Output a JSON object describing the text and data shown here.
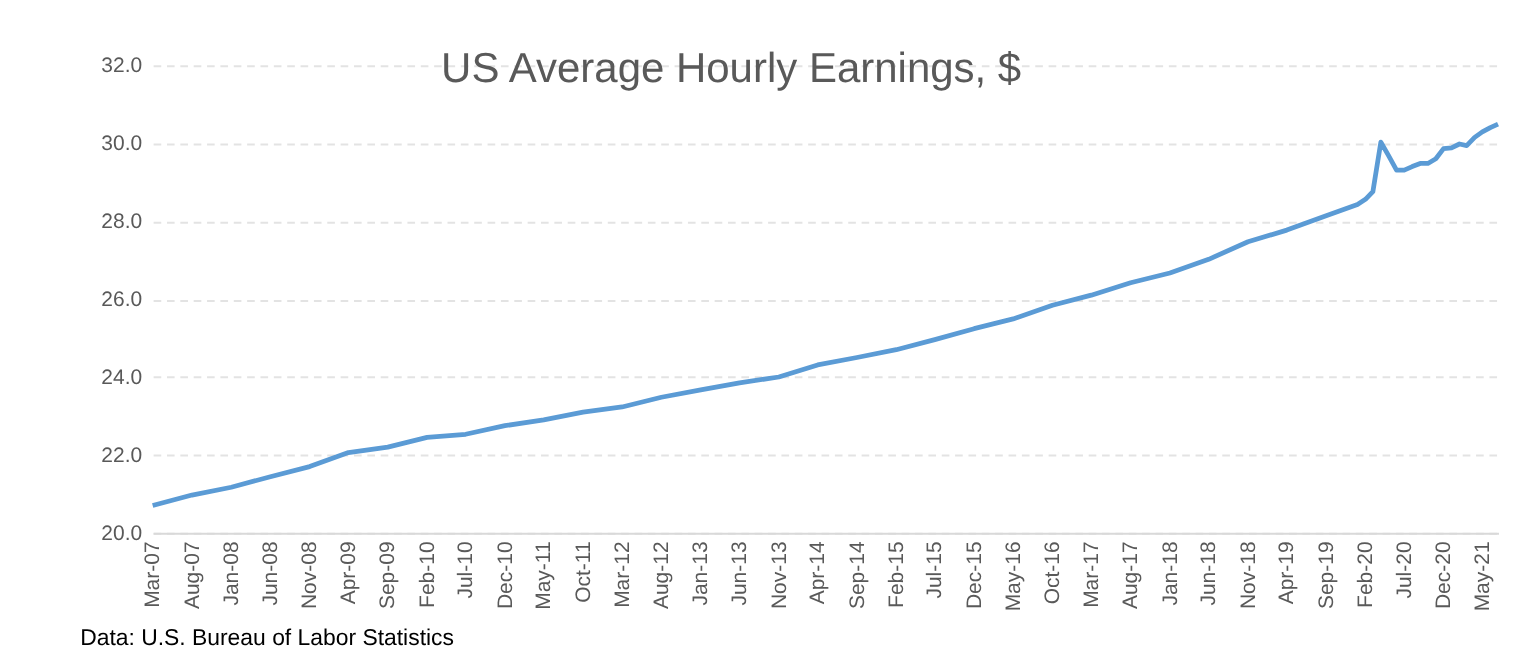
{
  "chart_data": {
    "type": "line",
    "title": "US Average Hourly Earnings, $",
    "annotations": [
      "Data: U.S. Bureau of Labor Statistics"
    ],
    "x": [
      "2007-03",
      "2007-08",
      "2008-01",
      "2008-06",
      "2008-11",
      "2009-04",
      "2009-09",
      "2010-02",
      "2010-07",
      "2010-12",
      "2011-05",
      "2011-10",
      "2012-03",
      "2012-08",
      "2013-01",
      "2013-06",
      "2013-11",
      "2014-04",
      "2014-09",
      "2015-02",
      "2015-07",
      "2015-12",
      "2016-05",
      "2016-10",
      "2017-03",
      "2017-08",
      "2018-01",
      "2018-06",
      "2018-11",
      "2019-04",
      "2019-09",
      "2020-01",
      "2020-02",
      "2020-03",
      "2020-04",
      "2020-05",
      "2020-06",
      "2020-07",
      "2020-08",
      "2020-09",
      "2020-10",
      "2020-11",
      "2020-12",
      "2021-01",
      "2021-02",
      "2021-03",
      "2021-04",
      "2021-05",
      "2021-06",
      "2021-07"
    ],
    "series": [
      {
        "color": "#5b9bd5",
        "values": [
          20.7,
          20.97,
          21.17,
          21.44,
          21.7,
          22.06,
          22.2,
          22.45,
          22.53,
          22.75,
          22.9,
          23.1,
          23.23,
          23.48,
          23.67,
          23.85,
          24.0,
          24.31,
          24.5,
          24.7,
          24.96,
          25.24,
          25.49,
          25.84,
          26.1,
          26.42,
          26.67,
          27.02,
          27.47,
          27.77,
          28.14,
          28.43,
          28.56,
          28.76,
          30.03,
          29.68,
          29.31,
          29.31,
          29.4,
          29.48,
          29.48,
          29.6,
          29.86,
          29.88,
          29.98,
          29.94,
          30.15,
          30.29,
          30.4,
          30.49
        ]
      }
    ],
    "xlim": [
      "2007-03",
      "2021-07"
    ],
    "xticks": [
      {
        "value": "2007-03",
        "label": "Mar-07"
      },
      {
        "value": "2007-08",
        "label": "Aug-07"
      },
      {
        "value": "2008-01",
        "label": "Jan-08"
      },
      {
        "value": "2008-06",
        "label": "Jun-08"
      },
      {
        "value": "2008-11",
        "label": "Nov-08"
      },
      {
        "value": "2009-04",
        "label": "Apr-09"
      },
      {
        "value": "2009-09",
        "label": "Sep-09"
      },
      {
        "value": "2010-02",
        "label": "Feb-10"
      },
      {
        "value": "2010-07",
        "label": "Jul-10"
      },
      {
        "value": "2010-12",
        "label": "Dec-10"
      },
      {
        "value": "2011-05",
        "label": "May-11"
      },
      {
        "value": "2011-10",
        "label": "Oct-11"
      },
      {
        "value": "2012-03",
        "label": "Mar-12"
      },
      {
        "value": "2012-08",
        "label": "Aug-12"
      },
      {
        "value": "2013-01",
        "label": "Jan-13"
      },
      {
        "value": "2013-06",
        "label": "Jun-13"
      },
      {
        "value": "2013-11",
        "label": "Nov-13"
      },
      {
        "value": "2014-04",
        "label": "Apr-14"
      },
      {
        "value": "2014-09",
        "label": "Sep-14"
      },
      {
        "value": "2015-02",
        "label": "Feb-15"
      },
      {
        "value": "2015-07",
        "label": "Jul-15"
      },
      {
        "value": "2015-12",
        "label": "Dec-15"
      },
      {
        "value": "2016-05",
        "label": "May-16"
      },
      {
        "value": "2016-10",
        "label": "Oct-16"
      },
      {
        "value": "2017-03",
        "label": "Mar-17"
      },
      {
        "value": "2017-08",
        "label": "Aug-17"
      },
      {
        "value": "2018-01",
        "label": "Jan-18"
      },
      {
        "value": "2018-06",
        "label": "Jun-18"
      },
      {
        "value": "2018-11",
        "label": "Nov-18"
      },
      {
        "value": "2019-04",
        "label": "Apr-19"
      },
      {
        "value": "2019-09",
        "label": "Sep-19"
      },
      {
        "value": "2020-02",
        "label": "Feb-20"
      },
      {
        "value": "2020-07",
        "label": "Jul-20"
      },
      {
        "value": "2020-12",
        "label": "Dec-20"
      },
      {
        "value": "2021-05",
        "label": "May-21"
      }
    ],
    "ylim": [
      20,
      32
    ],
    "yticks": [
      {
        "value": 20,
        "label": "20.0"
      },
      {
        "value": 22,
        "label": "22.0"
      },
      {
        "value": 24,
        "label": "24.0"
      },
      {
        "value": 26,
        "label": "26.0"
      },
      {
        "value": 28,
        "label": "28.0"
      },
      {
        "value": 30,
        "label": "30.0"
      },
      {
        "value": 32,
        "label": "32.0"
      }
    ],
    "grid": "y",
    "line_style": "solid",
    "marker": "none"
  }
}
